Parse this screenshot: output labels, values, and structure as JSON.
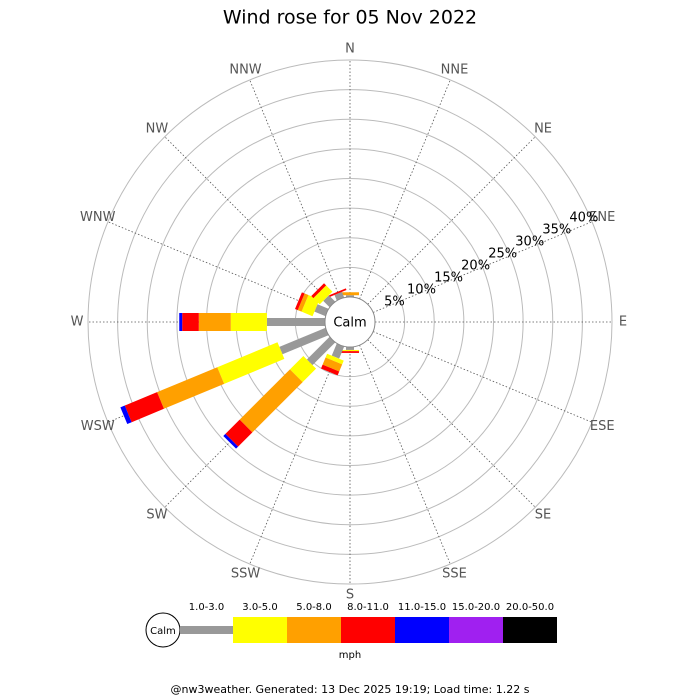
{
  "chart_data": {
    "type": "windrose",
    "title": "Wind rose for 05 Nov 2022",
    "categories": [
      "N",
      "NNE",
      "NE",
      "ENE",
      "E",
      "ESE",
      "SE",
      "SSE",
      "S",
      "SSW",
      "SW",
      "WSW",
      "W",
      "WNW",
      "NW",
      "NNW"
    ],
    "calm_label": "Calm",
    "rlim": [
      0,
      40
    ],
    "rticks": [
      {
        "value": 5,
        "label": "5%"
      },
      {
        "value": 10,
        "label": "10%"
      },
      {
        "value": 15,
        "label": "15%"
      },
      {
        "value": 20,
        "label": "20%"
      },
      {
        "value": 25,
        "label": "25%"
      },
      {
        "value": 30,
        "label": "30%"
      },
      {
        "value": 35,
        "label": "35%"
      },
      {
        "value": 40,
        "label": "40%"
      }
    ],
    "series": [
      {
        "name": "1.0-3.0",
        "color": "#999999",
        "values": [
          0.3,
          0,
          0,
          0,
          0,
          0,
          0,
          0,
          0.5,
          2.2,
          5.4,
          8.4,
          9.8,
          2,
          1.5,
          1
        ]
      },
      {
        "name": "3.0-5.0",
        "color": "#ffff00",
        "values": [
          0,
          0,
          0,
          0,
          0,
          0,
          0,
          0,
          0.2,
          0.7,
          3.2,
          11.0,
          6.1,
          2,
          1.5,
          0
        ]
      },
      {
        "name": "5.0-8.0",
        "color": "#ffa000",
        "values": [
          0.5,
          0,
          0,
          0,
          0,
          0,
          0,
          0,
          0,
          1.3,
          12.0,
          11.0,
          5.4,
          0.7,
          0,
          0
        ]
      },
      {
        "name": "8.0-11.0",
        "color": "#ff0000",
        "values": [
          0,
          0,
          0,
          0,
          0,
          0,
          0,
          0,
          0.3,
          0.7,
          3.4,
          5.9,
          2.8,
          0.5,
          0.5,
          0.3
        ]
      },
      {
        "name": "11.0-15.0",
        "color": "#0000ff",
        "values": [
          0,
          0,
          0,
          0,
          0,
          0,
          0,
          0,
          0,
          0,
          0.5,
          0.8,
          0.5,
          0,
          0,
          0
        ]
      },
      {
        "name": "15.0-20.0",
        "color": "#a020f0",
        "values": [
          0,
          0,
          0,
          0,
          0,
          0,
          0,
          0,
          0,
          0,
          0,
          0,
          0,
          0,
          0,
          0
        ]
      },
      {
        "name": "20.0-50.0",
        "color": "#000000",
        "values": [
          0,
          0,
          0,
          0,
          0,
          0,
          0,
          0,
          0,
          0,
          0,
          0,
          0,
          0,
          0,
          0
        ]
      }
    ],
    "unit": "mph",
    "footer": "@nw3weather. Generated: 13 Dec 2025 19:19; Load time: 1.22 s"
  }
}
